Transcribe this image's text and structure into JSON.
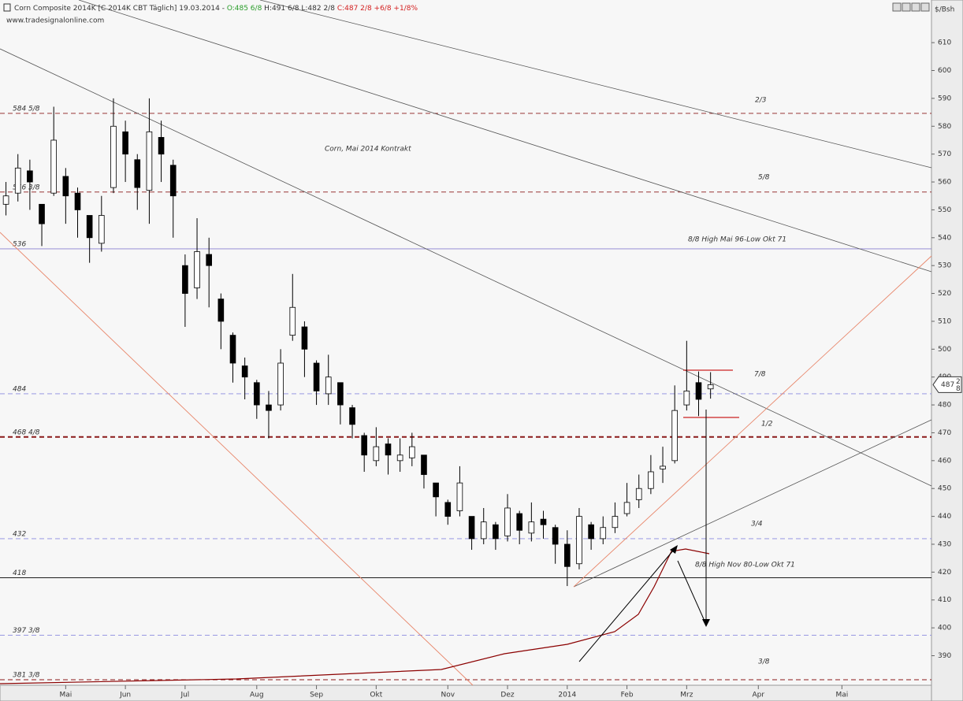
{
  "chart_data": {
    "type": "candlestick",
    "title": "Corn Composite 2014K [C 2014K CBT Täglich] 19.03.2014 -",
    "ohlc_header": [
      "O:485 6/8",
      "H:491 6/8",
      "L:482 2/8",
      "C:487 2/8 +6/8 +1/8%"
    ],
    "watermark": "www.tradesignalonline.com",
    "y_unit": "$/Bsh",
    "categories": [
      null,
      null,
      null,
      null,
      null,
      "Mai",
      null,
      null,
      null,
      null,
      "Jun",
      null,
      null,
      null,
      null,
      "Jul",
      null,
      null,
      null,
      null,
      null,
      "Aug",
      null,
      null,
      null,
      null,
      "Sep",
      null,
      null,
      null,
      null,
      "Okt",
      null,
      null,
      null,
      null,
      null,
      "Nov",
      null,
      null,
      null,
      null,
      "Dez",
      null,
      null,
      null,
      null,
      "2014",
      null,
      null,
      null,
      null,
      "Feb",
      null,
      null,
      null,
      null,
      "Mrz",
      null,
      null,
      null,
      null,
      null,
      "Apr",
      null,
      null,
      null,
      null,
      null,
      null,
      "Mai",
      null,
      null,
      null,
      null,
      null,
      null,
      null
    ],
    "open": [
      552,
      556,
      564,
      552,
      556,
      562,
      556,
      548,
      538,
      558,
      578,
      568,
      557,
      576,
      566,
      530,
      522,
      534,
      518,
      505,
      494,
      488,
      480,
      480,
      505,
      508,
      495,
      484,
      488,
      479,
      469,
      460,
      466,
      460,
      461,
      462,
      452,
      445,
      442,
      440,
      432,
      437,
      433,
      441,
      434,
      439,
      436,
      430,
      423,
      437,
      432,
      436,
      441,
      446,
      450,
      457,
      460,
      480,
      488,
      485.75,
      null,
      null,
      null,
      null,
      null,
      null,
      null,
      null,
      null,
      null,
      null,
      null,
      null,
      null,
      null,
      null,
      null,
      null
    ],
    "high": [
      560,
      570,
      568,
      552,
      587,
      565,
      558,
      548,
      555,
      590,
      582,
      570,
      590,
      582,
      568,
      534,
      547,
      540,
      520,
      506,
      497,
      489,
      485,
      500,
      527,
      510,
      496,
      498,
      488,
      480,
      470,
      472,
      468,
      468,
      470,
      462,
      452,
      446,
      458,
      440,
      443,
      438,
      448,
      442,
      445,
      442,
      437,
      435,
      443,
      438,
      440,
      445,
      452,
      455,
      462,
      465,
      487,
      503,
      492,
      491.75,
      null,
      null,
      null,
      null,
      null,
      null,
      null,
      null,
      null,
      null,
      null,
      null,
      null,
      null,
      null,
      null,
      null,
      null
    ],
    "low": [
      548,
      553,
      550,
      537,
      555,
      545,
      540,
      531,
      535,
      556,
      560,
      550,
      545,
      560,
      540,
      508,
      518,
      515,
      500,
      488,
      482,
      475,
      468,
      478,
      503,
      490,
      480,
      480,
      473,
      468,
      456,
      458,
      455,
      456,
      458,
      450,
      440,
      437,
      440,
      428,
      430,
      428,
      431,
      430,
      431,
      432,
      423,
      415,
      421,
      428,
      430,
      434,
      440,
      443,
      448,
      452,
      459,
      478,
      476,
      482.25,
      null,
      null,
      null,
      null,
      null,
      null,
      null,
      null,
      null,
      null,
      null,
      null,
      null,
      null,
      null,
      null,
      null,
      null
    ],
    "close": [
      555,
      565,
      560,
      545,
      575,
      555,
      550,
      540,
      548,
      580,
      570,
      558,
      578,
      570,
      555,
      520,
      535,
      530,
      510,
      495,
      490,
      480,
      478,
      495,
      515,
      500,
      485,
      490,
      480,
      473,
      462,
      465,
      462,
      462,
      465,
      455,
      447,
      440,
      452,
      432,
      438,
      432,
      443,
      435,
      438,
      437,
      430,
      422,
      440,
      432,
      436,
      440,
      445,
      450,
      456,
      458,
      478,
      485,
      482,
      487.25,
      null,
      null,
      null,
      null,
      null,
      null,
      null,
      null,
      null,
      null,
      null,
      null,
      null,
      null,
      null,
      null,
      null,
      null
    ],
    "ylim": [
      379.4,
      625.3
    ],
    "yticks": [
      390,
      400,
      410,
      420,
      430,
      440,
      450,
      460,
      470,
      480,
      490,
      500,
      510,
      520,
      530,
      540,
      550,
      560,
      570,
      580,
      590,
      600,
      610
    ],
    "levels": [
      {
        "value": 584.625,
        "label": "584 5/8",
        "color": "#8b1a1a",
        "style": "dashed"
      },
      {
        "value": 556.375,
        "label": "556 3/8",
        "color": "#8b1a1a",
        "style": "dashed"
      },
      {
        "value": 536,
        "label": "536",
        "color": "#8a7fd0",
        "style": "solid"
      },
      {
        "value": 484,
        "label": "484",
        "color": "#8a8ae0",
        "style": "dashed"
      },
      {
        "value": 468.5,
        "label": "468 4/8",
        "color": "#8b1a1a",
        "style": "thick-dashed"
      },
      {
        "value": 432,
        "label": "432",
        "color": "#8a8ae0",
        "style": "dashed"
      },
      {
        "value": 418,
        "label": "418",
        "color": "#000000",
        "style": "solid"
      },
      {
        "value": 397.375,
        "label": "397 3/8",
        "color": "#8a8ae0",
        "style": "dashed"
      },
      {
        "value": 381.375,
        "label": "381 3/8",
        "color": "#8b1a1a",
        "style": "dashed"
      }
    ],
    "annotations": [
      "Corn, Mai 2014 Kontrakt",
      "2/3",
      "5/8",
      "8/8 High Mai 96-Low Okt 71",
      "7/8",
      "1/2",
      "3/4",
      "8/8 High Nov 80-Low Okt 71",
      "3/8"
    ],
    "last_price": {
      "value": 487.25,
      "label": "487",
      "numerator": "2",
      "denominator": "8"
    }
  }
}
